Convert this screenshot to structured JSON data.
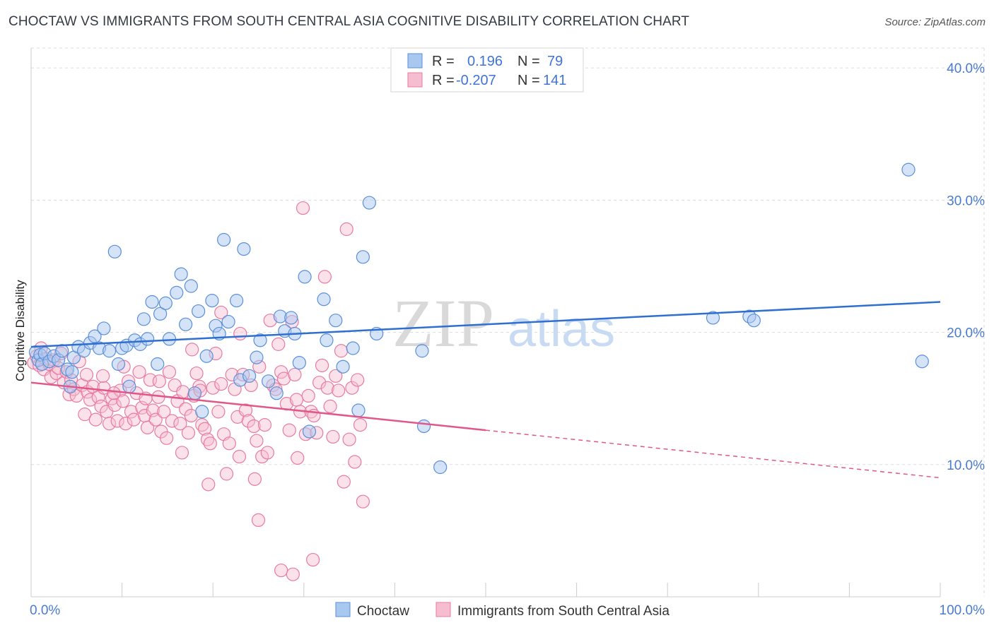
{
  "title": "CHOCTAW VS IMMIGRANTS FROM SOUTH CENTRAL ASIA COGNITIVE DISABILITY CORRELATION CHART",
  "source": "Source: ZipAtlas.com",
  "watermark": {
    "zip": "ZIP",
    "atlas": "atlas"
  },
  "colors": {
    "choctaw_fill": "#a9c8f0",
    "choctaw_stroke": "#5b8fd8",
    "choctaw_line": "#2f6fd0",
    "immig_fill": "#f6bcd0",
    "immig_stroke": "#e77ca0",
    "immig_line": "#e0588a",
    "grid": "#dddddd",
    "tick_label": "#4a7bd0"
  },
  "legend": {
    "r_label": "R =",
    "n_label": "N =",
    "rows": [
      {
        "r": "0.196",
        "n": "79"
      },
      {
        "r": "-0.207",
        "n": "141"
      }
    ]
  },
  "chart_data": {
    "type": "scatter",
    "title": "CHOCTAW VS IMMIGRANTS FROM SOUTH CENTRAL ASIA COGNITIVE DISABILITY CORRELATION CHART",
    "xlabel": "",
    "ylabel": "Cognitive Disability",
    "xlim": [
      0,
      100
    ],
    "ylim": [
      0,
      41.5
    ],
    "y_ticks": [
      10,
      20,
      30,
      40
    ],
    "y_tick_labels": [
      "10.0%",
      "20.0%",
      "30.0%",
      "40.0%"
    ],
    "x_tick_labels": [
      "0.0%",
      "100.0%"
    ],
    "grid": true,
    "legend_position": "top-center",
    "series": [
      {
        "name": "Choctaw",
        "r": 0.196,
        "n": 79,
        "trend": {
          "x0": 0,
          "y0": 18.9,
          "x1": 100,
          "y1": 22.3,
          "dashed_from": null
        },
        "points": [
          [
            0.5,
            18.5
          ],
          [
            0.8,
            17.9
          ],
          [
            1.0,
            18.3
          ],
          [
            1.2,
            17.6
          ],
          [
            1.5,
            18.4
          ],
          [
            2.0,
            17.8
          ],
          [
            2.5,
            18.2
          ],
          [
            3.0,
            17.9
          ],
          [
            3.4,
            18.6
          ],
          [
            4.0,
            17.2
          ],
          [
            4.3,
            15.9
          ],
          [
            4.5,
            17.0
          ],
          [
            4.7,
            18.1
          ],
          [
            5.2,
            18.9
          ],
          [
            5.8,
            18.6
          ],
          [
            6.5,
            19.2
          ],
          [
            7.0,
            19.7
          ],
          [
            7.5,
            18.8
          ],
          [
            8.0,
            20.3
          ],
          [
            8.6,
            18.6
          ],
          [
            9.2,
            26.1
          ],
          [
            9.6,
            17.6
          ],
          [
            10.0,
            18.8
          ],
          [
            10.5,
            19.0
          ],
          [
            10.8,
            15.9
          ],
          [
            11.4,
            19.4
          ],
          [
            12.0,
            19.1
          ],
          [
            12.4,
            21.0
          ],
          [
            12.8,
            19.5
          ],
          [
            13.3,
            22.3
          ],
          [
            13.9,
            17.6
          ],
          [
            14.2,
            21.4
          ],
          [
            14.8,
            22.2
          ],
          [
            15.2,
            19.5
          ],
          [
            16.0,
            23.0
          ],
          [
            16.5,
            24.4
          ],
          [
            17.0,
            20.6
          ],
          [
            17.6,
            23.5
          ],
          [
            18.0,
            15.4
          ],
          [
            18.4,
            21.6
          ],
          [
            18.8,
            14.0
          ],
          [
            19.3,
            18.2
          ],
          [
            19.9,
            22.4
          ],
          [
            20.3,
            20.5
          ],
          [
            20.7,
            19.9
          ],
          [
            21.2,
            27.0
          ],
          [
            21.7,
            20.8
          ],
          [
            22.6,
            22.4
          ],
          [
            23.0,
            16.4
          ],
          [
            23.4,
            26.3
          ],
          [
            24.0,
            16.7
          ],
          [
            24.8,
            18.1
          ],
          [
            25.2,
            19.4
          ],
          [
            26.1,
            16.3
          ],
          [
            27.0,
            15.4
          ],
          [
            27.4,
            21.2
          ],
          [
            27.9,
            20.1
          ],
          [
            28.6,
            21.1
          ],
          [
            29.0,
            19.9
          ],
          [
            29.5,
            17.7
          ],
          [
            30.1,
            24.2
          ],
          [
            30.6,
            12.5
          ],
          [
            32.2,
            22.5
          ],
          [
            32.5,
            19.4
          ],
          [
            33.5,
            20.9
          ],
          [
            34.3,
            17.4
          ],
          [
            35.4,
            18.8
          ],
          [
            36.0,
            14.1
          ],
          [
            36.5,
            25.7
          ],
          [
            37.2,
            29.8
          ],
          [
            38.0,
            19.9
          ],
          [
            43.0,
            18.6
          ],
          [
            43.2,
            12.9
          ],
          [
            45.0,
            9.8
          ],
          [
            75.0,
            21.1
          ],
          [
            79.0,
            21.2
          ],
          [
            79.5,
            20.9
          ],
          [
            96.5,
            32.3
          ],
          [
            98.0,
            17.8
          ]
        ]
      },
      {
        "name": "Immigrants from South Central Asia",
        "r": -0.207,
        "n": 141,
        "trend": {
          "x0": 0,
          "y0": 16.2,
          "x1": 100,
          "y1": 9.0,
          "dashed_from": 50.0
        },
        "points": [
          [
            0.3,
            17.7
          ],
          [
            0.6,
            18.2
          ],
          [
            0.9,
            17.5
          ],
          [
            1.1,
            18.8
          ],
          [
            1.4,
            17.2
          ],
          [
            1.6,
            18.0
          ],
          [
            2.0,
            17.6
          ],
          [
            2.2,
            16.6
          ],
          [
            2.5,
            17.9
          ],
          [
            2.8,
            16.9
          ],
          [
            3.0,
            17.3
          ],
          [
            3.3,
            18.4
          ],
          [
            3.6,
            16.2
          ],
          [
            3.9,
            17.0
          ],
          [
            4.2,
            15.3
          ],
          [
            4.4,
            16.4
          ],
          [
            4.7,
            15.7
          ],
          [
            5.0,
            15.2
          ],
          [
            5.3,
            17.8
          ],
          [
            5.6,
            16.0
          ],
          [
            5.9,
            13.8
          ],
          [
            6.2,
            15.5
          ],
          [
            6.5,
            14.9
          ],
          [
            6.8,
            15.9
          ],
          [
            7.1,
            13.4
          ],
          [
            7.4,
            15.1
          ],
          [
            7.7,
            14.4
          ],
          [
            8.0,
            15.8
          ],
          [
            8.3,
            14.0
          ],
          [
            8.6,
            13.1
          ],
          [
            8.9,
            15.0
          ],
          [
            9.2,
            14.5
          ],
          [
            9.5,
            13.3
          ],
          [
            9.8,
            15.6
          ],
          [
            10.1,
            14.8
          ],
          [
            10.4,
            13.1
          ],
          [
            10.7,
            16.3
          ],
          [
            11.0,
            14.0
          ],
          [
            11.3,
            13.4
          ],
          [
            11.6,
            15.4
          ],
          [
            11.9,
            17.0
          ],
          [
            12.2,
            14.3
          ],
          [
            12.5,
            13.7
          ],
          [
            12.8,
            12.8
          ],
          [
            13.1,
            16.4
          ],
          [
            13.4,
            14.1
          ],
          [
            13.7,
            13.4
          ],
          [
            14.0,
            15.1
          ],
          [
            14.3,
            12.5
          ],
          [
            14.6,
            14.0
          ],
          [
            14.9,
            12.0
          ],
          [
            15.2,
            17.0
          ],
          [
            15.5,
            13.3
          ],
          [
            15.8,
            16.0
          ],
          [
            16.1,
            14.8
          ],
          [
            16.4,
            13.1
          ],
          [
            16.7,
            15.5
          ],
          [
            17.0,
            14.2
          ],
          [
            17.3,
            12.4
          ],
          [
            17.6,
            13.7
          ],
          [
            17.9,
            15.2
          ],
          [
            18.2,
            16.9
          ],
          [
            18.5,
            15.9
          ],
          [
            18.8,
            13.0
          ],
          [
            19.1,
            12.7
          ],
          [
            19.4,
            11.9
          ],
          [
            19.7,
            11.6
          ],
          [
            20.0,
            15.8
          ],
          [
            20.3,
            18.4
          ],
          [
            20.6,
            14.0
          ],
          [
            20.9,
            16.1
          ],
          [
            21.2,
            12.3
          ],
          [
            21.5,
            9.3
          ],
          [
            21.8,
            11.6
          ],
          [
            22.1,
            16.8
          ],
          [
            22.4,
            15.7
          ],
          [
            22.7,
            13.6
          ],
          [
            23.0,
            19.9
          ],
          [
            23.3,
            16.8
          ],
          [
            23.6,
            14.1
          ],
          [
            23.9,
            13.3
          ],
          [
            24.2,
            16.0
          ],
          [
            24.5,
            12.9
          ],
          [
            24.8,
            11.8
          ],
          [
            25.1,
            17.4
          ],
          [
            25.4,
            10.6
          ],
          [
            25.7,
            13.0
          ],
          [
            26.0,
            10.9
          ],
          [
            26.3,
            20.9
          ],
          [
            26.6,
            16.0
          ],
          [
            26.9,
            15.7
          ],
          [
            27.2,
            19.1
          ],
          [
            27.5,
            17.0
          ],
          [
            27.8,
            16.5
          ],
          [
            28.1,
            14.6
          ],
          [
            28.4,
            12.6
          ],
          [
            28.7,
            20.8
          ],
          [
            29.0,
            16.8
          ],
          [
            29.3,
            10.5
          ],
          [
            29.6,
            14.0
          ],
          [
            29.9,
            29.4
          ],
          [
            30.2,
            12.3
          ],
          [
            30.5,
            15.2
          ],
          [
            30.8,
            14.0
          ],
          [
            31.1,
            13.7
          ],
          [
            31.4,
            12.4
          ],
          [
            31.7,
            16.2
          ],
          [
            32.0,
            17.5
          ],
          [
            32.3,
            24.2
          ],
          [
            32.6,
            15.8
          ],
          [
            32.9,
            14.4
          ],
          [
            33.2,
            12.1
          ],
          [
            33.5,
            16.7
          ],
          [
            33.8,
            15.6
          ],
          [
            34.1,
            18.6
          ],
          [
            34.4,
            8.7
          ],
          [
            34.7,
            27.8
          ],
          [
            35.0,
            11.9
          ],
          [
            35.3,
            15.8
          ],
          [
            35.6,
            10.2
          ],
          [
            35.9,
            16.4
          ],
          [
            36.2,
            13.0
          ],
          [
            36.5,
            7.2
          ],
          [
            19.5,
            8.5
          ],
          [
            20.9,
            21.5
          ],
          [
            22.9,
            10.6
          ],
          [
            25.0,
            5.8
          ],
          [
            27.5,
            2.0
          ],
          [
            28.8,
            1.7
          ],
          [
            29.2,
            14.9
          ],
          [
            31.0,
            2.8
          ],
          [
            16.6,
            10.9
          ],
          [
            24.6,
            8.9
          ],
          [
            17.7,
            18.7
          ],
          [
            18.6,
            15.6
          ],
          [
            10.2,
            17.4
          ],
          [
            12.6,
            15.0
          ],
          [
            14.1,
            16.3
          ],
          [
            9.1,
            15.4
          ],
          [
            7.9,
            16.7
          ],
          [
            6.1,
            16.8
          ]
        ]
      }
    ]
  }
}
